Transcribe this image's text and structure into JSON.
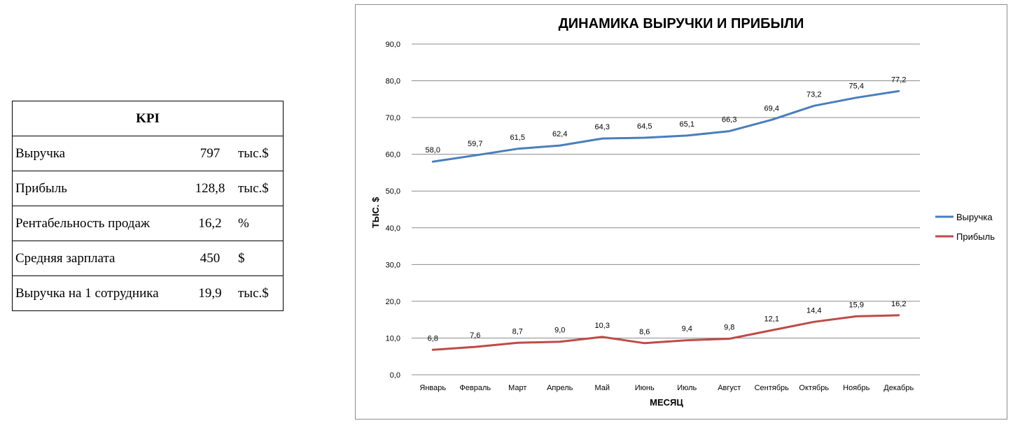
{
  "kpi": {
    "title": "KPI",
    "rows": [
      {
        "label": "Выручка",
        "value": "797",
        "unit": "тыс.$"
      },
      {
        "label": "Прибыль",
        "value": "128,8",
        "unit": "тыс.$"
      },
      {
        "label": "Рентабельность продаж",
        "value": "16,2",
        "unit": "%"
      },
      {
        "label": "Средняя зарплата",
        "value": "450",
        "unit": "$"
      },
      {
        "label": "Выручка на 1 сотрудника",
        "value": "19,9",
        "unit": "тыс.$"
      }
    ]
  },
  "chart_data": {
    "type": "line",
    "title": "ДИНАМИКА  ВЫРУЧКИ  И  ПРИБЫЛИ",
    "xlabel": "МЕСЯЦ",
    "ylabel": "ТЫС. $",
    "ylim": [
      0,
      90
    ],
    "ytick_step": 10,
    "ytick_labels": [
      "0,0",
      "10,0",
      "20,0",
      "30,0",
      "40,0",
      "50,0",
      "60,0",
      "70,0",
      "80,0",
      "90,0"
    ],
    "grid": true,
    "legend_position": "right",
    "categories": [
      "Январь",
      "Февраль",
      "Март",
      "Апрель",
      "Май",
      "Июнь",
      "Июль",
      "Август",
      "Сентябрь",
      "Октябрь",
      "Ноябрь",
      "Декабрь"
    ],
    "series": [
      {
        "name": "Выручка",
        "color": "#4a7ebb",
        "values": [
          58.0,
          59.7,
          61.5,
          62.4,
          64.3,
          64.5,
          65.1,
          66.3,
          69.4,
          73.2,
          75.4,
          77.2
        ],
        "labels": [
          "58,0",
          "59,7",
          "61,5",
          "62,4",
          "64,3",
          "64,5",
          "65,1",
          "66,3",
          "69,4",
          "73,2",
          "75,4",
          "77,2"
        ]
      },
      {
        "name": "Прибыль",
        "color": "#be4b48",
        "values": [
          6.8,
          7.6,
          8.7,
          9.0,
          10.3,
          8.6,
          9.4,
          9.8,
          12.1,
          14.4,
          15.9,
          16.2
        ],
        "labels": [
          "6,8",
          "7,6",
          "8,7",
          "9,0",
          "10,3",
          "8,6",
          "9,4",
          "9,8",
          "12,1",
          "14,4",
          "15,9",
          "16,2"
        ]
      }
    ]
  }
}
